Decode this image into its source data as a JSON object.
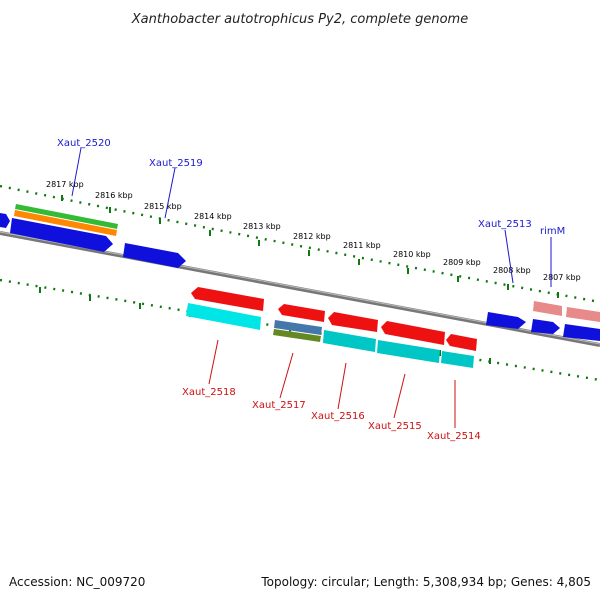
{
  "title": "Xanthobacter autotrophicus Py2, complete genome",
  "footer": {
    "accession": "Accession: NC_009720",
    "summary": "Topology: circular; Length: 5,308,934 bp; Genes: 4,805"
  },
  "kbp_ticks": [
    "2817 kbp",
    "2816 kbp",
    "2815 kbp",
    "2814 kbp",
    "2813 kbp",
    "2812 kbp",
    "2811 kbp",
    "2810 kbp",
    "2809 kbp",
    "2808 kbp",
    "2807 kbp"
  ],
  "genes_top": [
    "Xaut_2520",
    "Xaut_2519",
    "Xaut_2513",
    "rimM"
  ],
  "genes_bottom": [
    "Xaut_2518",
    "Xaut_2517",
    "Xaut_2516",
    "Xaut_2515",
    "Xaut_2514"
  ],
  "colors": {
    "forward_gene": "#1010dd",
    "reverse_gene": "#ee1111",
    "cds_cyan": "#00d0d0",
    "green_feature": "#33bb33",
    "orange_feature": "#ff8800",
    "pink_feature": "#e88a8a",
    "backbone": "#777777",
    "tick_dots": "#117711"
  }
}
